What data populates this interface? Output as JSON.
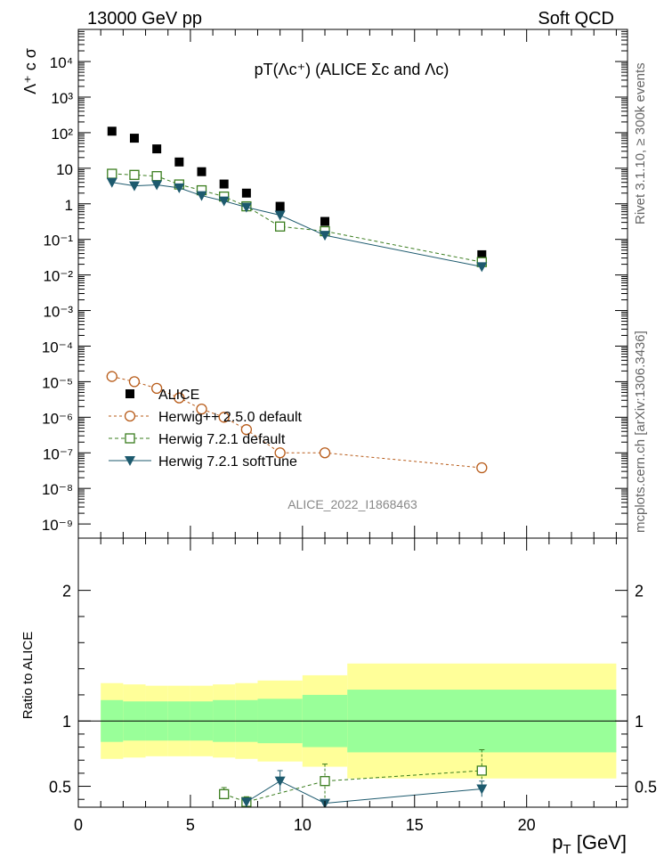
{
  "header": {
    "energy_label": "13000 GeV pp",
    "process_label": "Soft QCD"
  },
  "side_text": {
    "rivet": "Rivet 3.1.10,  ≥ 300k events",
    "mcplots": "mcplots.cern.ch [arXiv:1306.3436]"
  },
  "chart_data": [
    {
      "type": "scatter",
      "panel": "main",
      "title": "pT(Λc⁺) (ALICE Σc and Λc)",
      "ylabel": "Λ⁺ c σ",
      "yscale": "log",
      "ylim": [
        4e-10,
        80000
      ],
      "xlim": [
        0,
        24.5
      ],
      "analysis_tag": "ALICE_2022_I1868463",
      "y_ticks": [
        {
          "value": 1e-09,
          "label": "10⁻⁹"
        },
        {
          "value": 1e-08,
          "label": "10⁻⁸"
        },
        {
          "value": 1e-07,
          "label": "10⁻⁷"
        },
        {
          "value": 1e-06,
          "label": "10⁻⁶"
        },
        {
          "value": 1e-05,
          "label": "10⁻⁵"
        },
        {
          "value": 0.0001,
          "label": "10⁻⁴"
        },
        {
          "value": 0.001,
          "label": "10⁻³"
        },
        {
          "value": 0.01,
          "label": "10⁻²"
        },
        {
          "value": 0.1,
          "label": "10⁻¹"
        },
        {
          "value": 1,
          "label": "1"
        },
        {
          "value": 10,
          "label": "10"
        },
        {
          "value": 100,
          "label": "10²"
        },
        {
          "value": 1000,
          "label": "10³"
        },
        {
          "value": 10000,
          "label": "10⁴"
        }
      ],
      "series": [
        {
          "name": "ALICE",
          "style": "data",
          "color": "#000000",
          "x": [
            1.5,
            2.5,
            3.5,
            4.5,
            5.5,
            6.5,
            7.5,
            9,
            11,
            18
          ],
          "y": [
            110,
            70,
            35,
            15,
            8,
            3.6,
            2.0,
            0.85,
            0.32,
            0.037
          ]
        },
        {
          "name": "Herwig++ 2.5.0 default",
          "style": "open-circle-dotted",
          "color": "#b85c1a",
          "x": [
            1.5,
            2.5,
            3.5,
            4.5,
            5.5,
            6.5,
            7.5,
            9,
            11,
            18
          ],
          "y": [
            1.4e-05,
            1e-05,
            6.5e-06,
            3.5e-06,
            1.7e-06,
            1e-06,
            4.5e-07,
            1e-07,
            1e-07,
            3.8e-08
          ]
        },
        {
          "name": "Herwig 7.2.1 default",
          "style": "open-square-dashed",
          "color": "#3a7d1e",
          "x": [
            1.5,
            2.5,
            3.5,
            4.5,
            5.5,
            6.5,
            7.5,
            9,
            11,
            18
          ],
          "y": [
            7.0,
            6.5,
            6.0,
            3.5,
            2.4,
            1.6,
            0.85,
            0.23,
            0.17,
            0.023
          ]
        },
        {
          "name": "Herwig 7.2.1 softTune",
          "style": "filled-triangle-solid",
          "color": "#1d5a6e",
          "x": [
            1.5,
            2.5,
            3.5,
            4.5,
            5.5,
            6.5,
            7.5,
            9,
            11,
            18
          ],
          "y": [
            4.0,
            3.2,
            3.4,
            2.8,
            1.7,
            1.2,
            0.8,
            0.48,
            0.13,
            0.017
          ]
        }
      ]
    },
    {
      "type": "scatter",
      "panel": "ratio",
      "ylabel": "Ratio to ALICE",
      "xlabel": "p_T [GeV]",
      "ylim": [
        0.34,
        2.4
      ],
      "xlim": [
        0,
        24.5
      ],
      "x_ticks": [
        0,
        5,
        10,
        15,
        20
      ],
      "y_ticks": [
        0.5,
        1,
        2
      ],
      "reference_line": 1,
      "bands": {
        "bin_edges": [
          1,
          2,
          3,
          4,
          5,
          6,
          7,
          8,
          10,
          12,
          24
        ],
        "yellow_half_width": [
          0.29,
          0.28,
          0.27,
          0.27,
          0.27,
          0.28,
          0.29,
          0.31,
          0.35,
          0.44
        ],
        "green_half_width": [
          0.16,
          0.15,
          0.15,
          0.15,
          0.15,
          0.16,
          0.16,
          0.17,
          0.2,
          0.24
        ],
        "yellow_color": "#ffff99",
        "green_color": "#99ff99"
      },
      "series": [
        {
          "name": "Herwig 7.2.1 default",
          "color": "#3a7d1e",
          "x": [
            6.5,
            7.5,
            11,
            18
          ],
          "y": [
            0.44,
            0.38,
            0.54,
            0.62
          ],
          "err": [
            0.05,
            0.04,
            0.13,
            0.16
          ]
        },
        {
          "name": "Herwig 7.2.1 softTune",
          "color": "#1d5a6e",
          "x": [
            7.5,
            9,
            11,
            18
          ],
          "y": [
            0.38,
            0.54,
            0.37,
            0.48
          ],
          "err": [
            0.03,
            0.08,
            0.02,
            0.06
          ]
        }
      ]
    }
  ]
}
